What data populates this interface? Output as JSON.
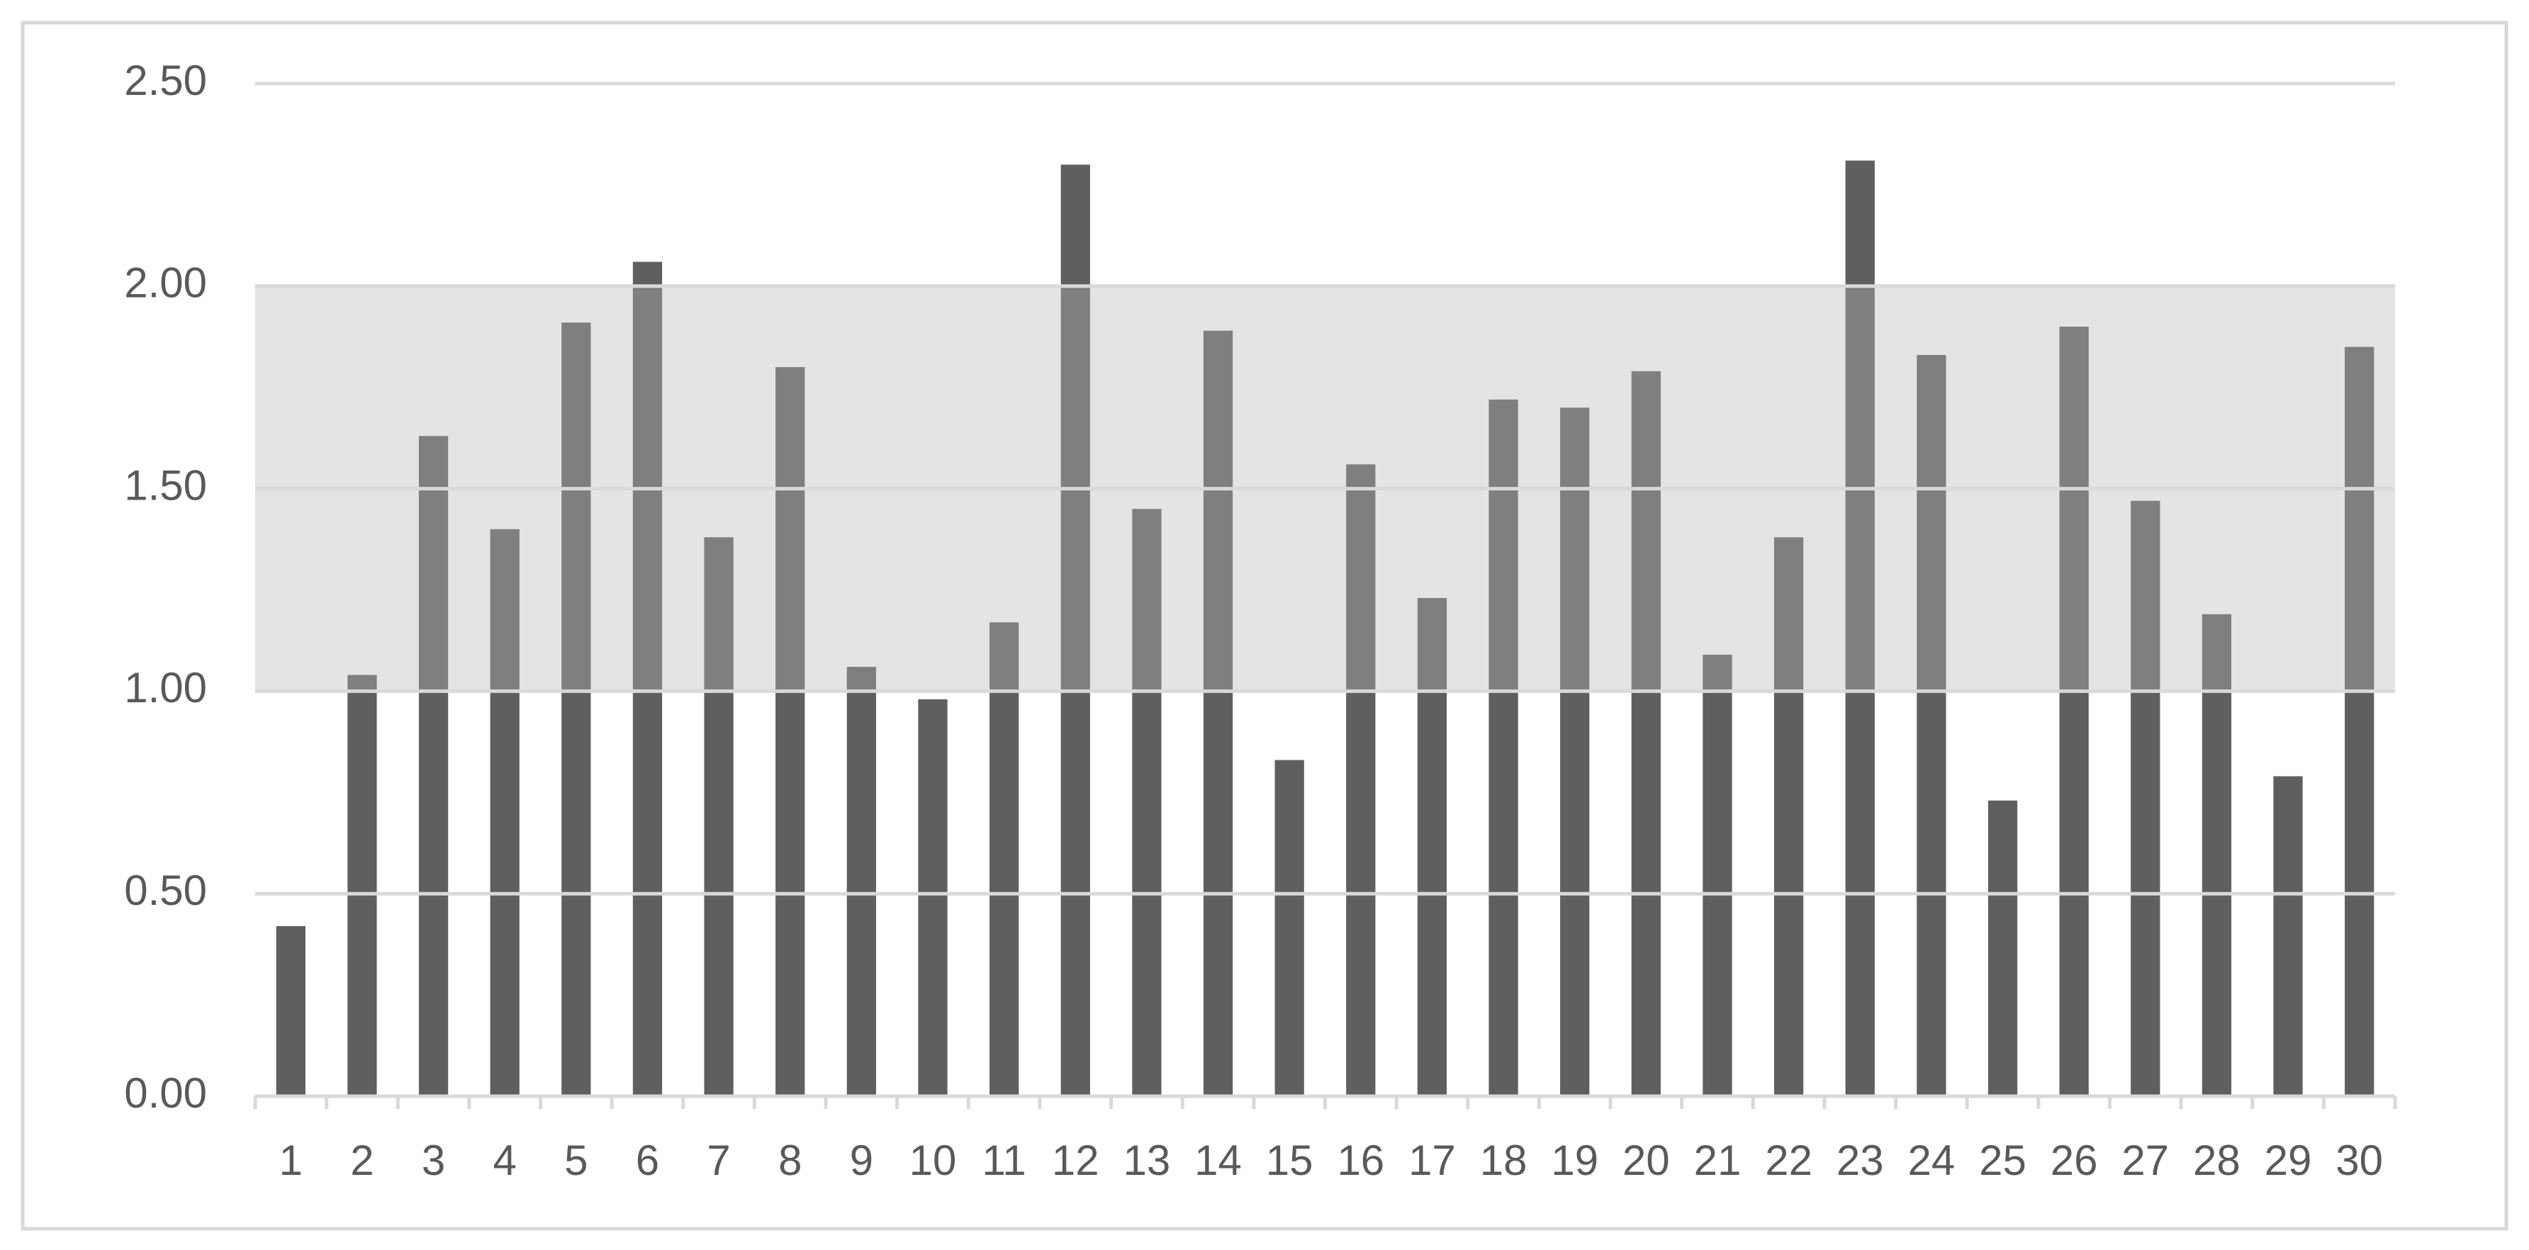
{
  "chart_data": {
    "type": "bar",
    "categories": [
      "1",
      "2",
      "3",
      "4",
      "5",
      "6",
      "7",
      "8",
      "9",
      "10",
      "11",
      "12",
      "13",
      "14",
      "15",
      "16",
      "17",
      "18",
      "19",
      "20",
      "21",
      "22",
      "23",
      "24",
      "25",
      "26",
      "27",
      "28",
      "29",
      "30"
    ],
    "values": [
      0.42,
      1.04,
      1.63,
      1.4,
      1.91,
      2.06,
      1.38,
      1.8,
      1.06,
      0.98,
      1.17,
      2.3,
      1.45,
      1.89,
      0.83,
      1.56,
      1.23,
      1.72,
      1.7,
      1.79,
      1.09,
      1.38,
      2.31,
      1.83,
      0.73,
      1.9,
      1.47,
      1.19,
      0.79,
      1.85
    ],
    "color": "#5f5f5f",
    "ylim": [
      0,
      2.5
    ],
    "yticks": [
      {
        "value": 0,
        "label": "0.00"
      },
      {
        "value": 0.5,
        "label": "0.50"
      },
      {
        "value": 1,
        "label": "1.00"
      },
      {
        "value": 1.5,
        "label": "1.50"
      },
      {
        "value": 2,
        "label": "2.00"
      },
      {
        "value": 2.5,
        "label": "2.50"
      }
    ],
    "grid": true,
    "band": [
      1,
      2
    ],
    "band_color": "#b6b6b6"
  }
}
